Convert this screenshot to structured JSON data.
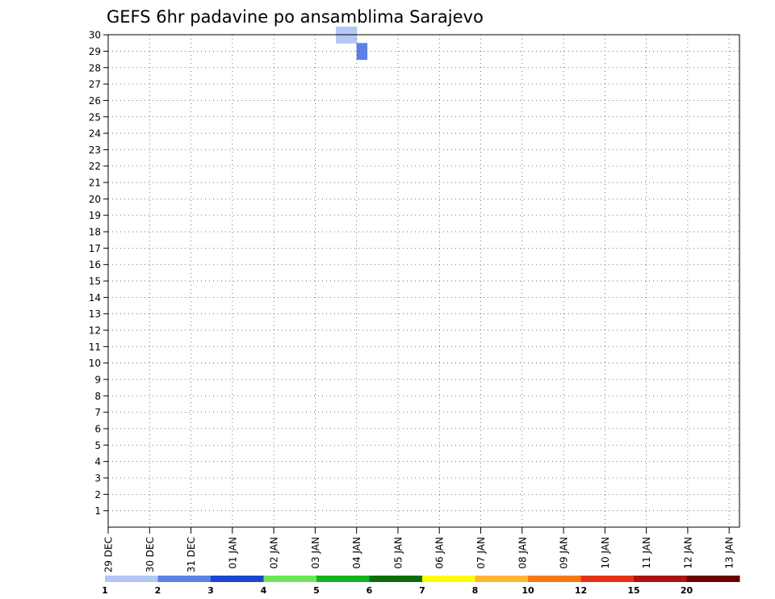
{
  "chart_data": {
    "type": "heatmap",
    "title": "GEFS 6hr padavine po ansamblima Sarajevo",
    "y_ticks": [
      "1",
      "2",
      "3",
      "4",
      "5",
      "6",
      "7",
      "8",
      "9",
      "10",
      "11",
      "12",
      "13",
      "14",
      "15",
      "16",
      "17",
      "18",
      "19",
      "20",
      "21",
      "22",
      "23",
      "24",
      "25",
      "26",
      "27",
      "28",
      "29",
      "30"
    ],
    "x_ticks": [
      "29 DEC",
      "30 DEC",
      "31 DEC",
      "01 JAN",
      "02 JAN",
      "03 JAN",
      "04 JAN",
      "05 JAN",
      "06 JAN",
      "07 JAN",
      "08 JAN",
      "09 JAN",
      "10 JAN",
      "11 JAN",
      "12 JAN",
      "13 JAN"
    ],
    "x_step_hours": 6,
    "grid": true,
    "legend": {
      "position": "bottom",
      "labels": [
        "1",
        "2",
        "3",
        "4",
        "5",
        "6",
        "7",
        "8",
        "10",
        "12",
        "15",
        "20"
      ],
      "colors": [
        "#b4c6f5",
        "#5a82e6",
        "#1c46d2",
        "#6ee65a",
        "#14b41e",
        "#0a6e0a",
        "#ffff00",
        "#ffb432",
        "#f57814",
        "#e63214",
        "#aa1414",
        "#6e0000"
      ]
    },
    "grid_cells": {
      "30": [
        [
          22,
          "1"
        ],
        [
          23,
          "1"
        ]
      ],
      "29": [
        [
          24,
          "2"
        ]
      ]
    }
  }
}
